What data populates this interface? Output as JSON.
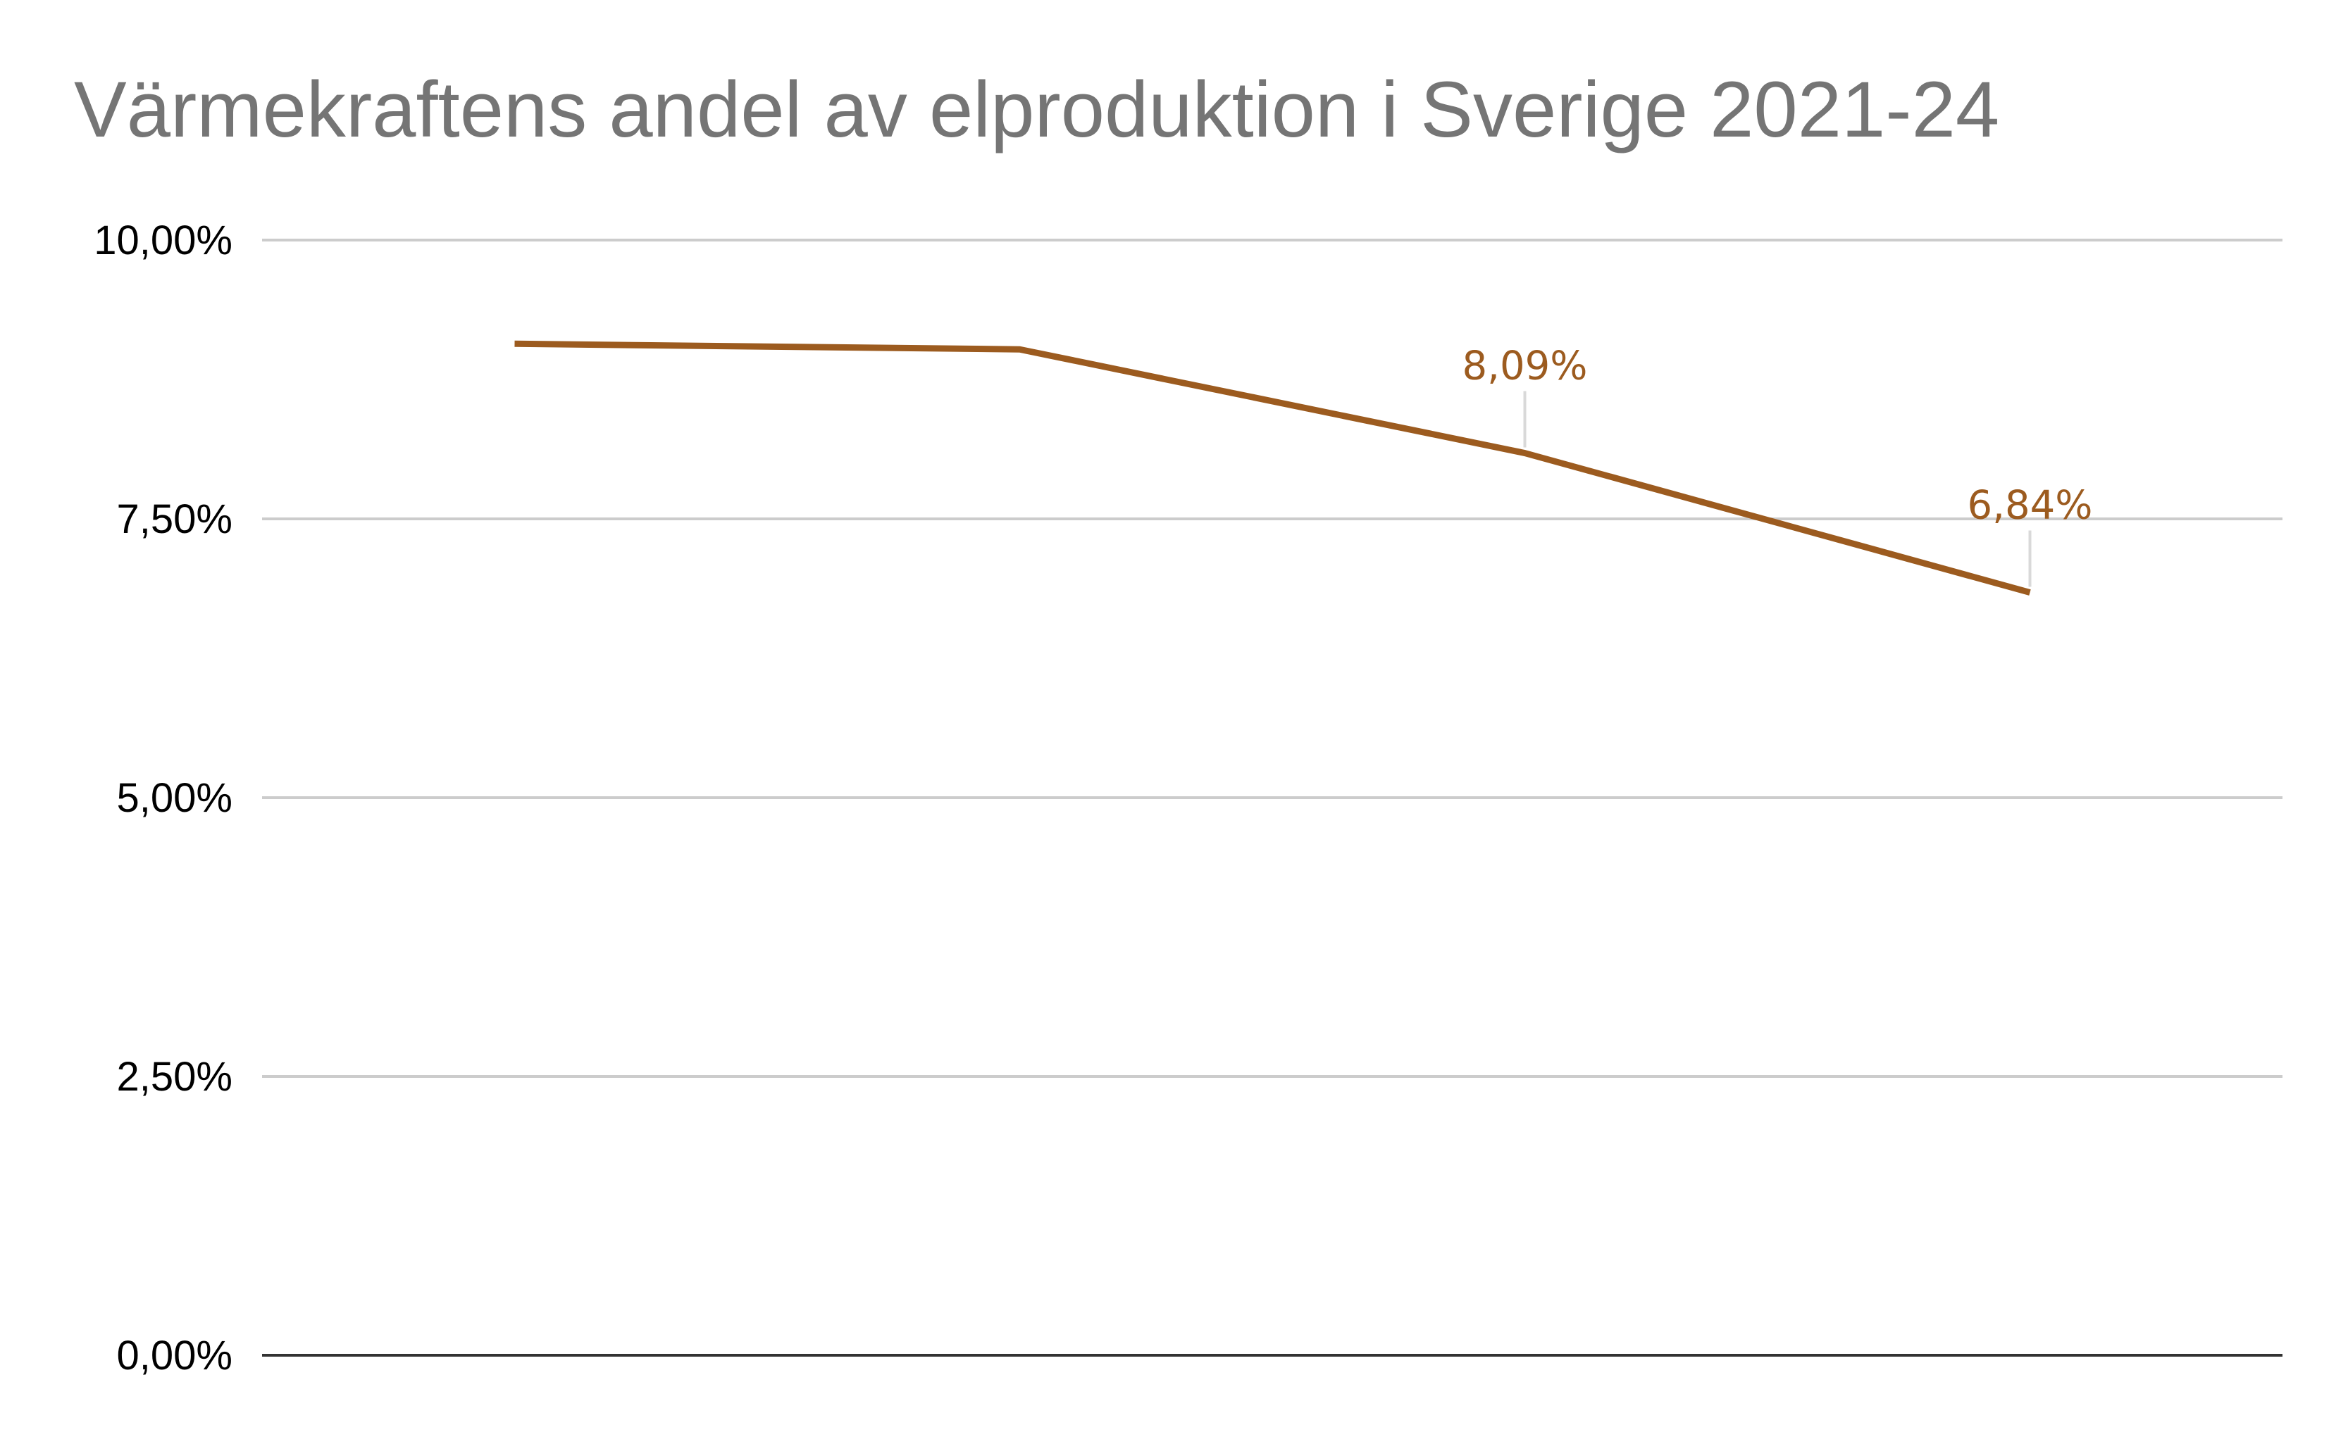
{
  "chart_data": {
    "type": "line",
    "title": "Värmekraftens andel av elproduktion i Sverige 2021-24",
    "xlabel": "",
    "ylabel": "",
    "x": [
      "",
      "",
      "",
      ""
    ],
    "series": [
      {
        "values": [
          9.07,
          9.02,
          8.09,
          6.84
        ],
        "color": "#9C5B1F"
      }
    ],
    "data_labels": [
      "",
      "",
      "8,09%",
      "6,84%"
    ],
    "ylim": [
      0,
      10
    ],
    "yticks": [
      0,
      2.5,
      5,
      7.5,
      10
    ],
    "ytick_labels": [
      "0,00%",
      "2,50%",
      "5,00%",
      "7,50%",
      "10,00%"
    ],
    "grid": true,
    "legend": "none",
    "colors": {
      "title": "#757575",
      "gridline": "#CCCCCC",
      "baseline": "#333333",
      "label_text": "#000000"
    }
  }
}
